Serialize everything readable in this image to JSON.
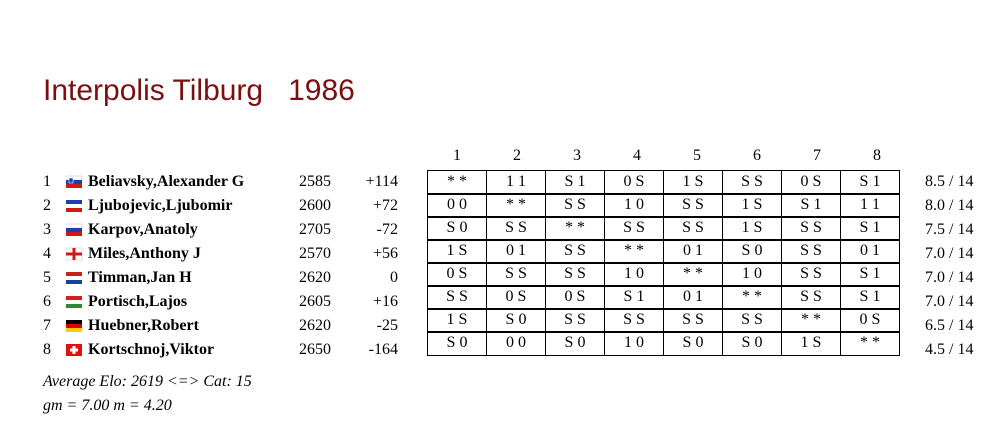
{
  "title": "Interpolis Tilburg",
  "year": "1986",
  "table": {
    "header": [
      "1",
      "2",
      "3",
      "4",
      "5",
      "6",
      "7",
      "8"
    ],
    "rows": [
      {
        "rank": "1",
        "name": "Beliavsky,Alexander G",
        "elo": "2585",
        "diff": "+114",
        "results": [
          "* *",
          "1 1",
          "S 1",
          "0 S",
          "1 S",
          "S S",
          "0 S",
          "S 1"
        ],
        "score": "8.5 / 14"
      },
      {
        "rank": "2",
        "name": "Ljubojevic,Ljubomir",
        "elo": "2600",
        "diff": "+72",
        "results": [
          "0 0",
          "* *",
          "S S",
          "1 0",
          "S S",
          "1 S",
          "S 1",
          "1 1"
        ],
        "score": "8.0 / 14"
      },
      {
        "rank": "3",
        "name": "Karpov,Anatoly",
        "elo": "2705",
        "diff": "-72",
        "results": [
          "S 0",
          "S S",
          "* *",
          "S S",
          "S S",
          "1 S",
          "S S",
          "S 1"
        ],
        "score": "7.5 / 14"
      },
      {
        "rank": "4",
        "name": "Miles,Anthony J",
        "elo": "2570",
        "diff": "+56",
        "results": [
          "1 S",
          "0 1",
          "S S",
          "* *",
          "0 1",
          "S 0",
          "S S",
          "0 1"
        ],
        "score": "7.0 / 14"
      },
      {
        "rank": "5",
        "name": "Timman,Jan H",
        "elo": "2620",
        "diff": "0",
        "results": [
          "0 S",
          "S S",
          "S S",
          "1 0",
          "* *",
          "1 0",
          "S S",
          "S 1"
        ],
        "score": "7.0 / 14"
      },
      {
        "rank": "6",
        "name": "Portisch,Lajos",
        "elo": "2605",
        "diff": "+16",
        "results": [
          "S S",
          "0 S",
          "0 S",
          "S 1",
          "0 1",
          "* *",
          "S S",
          "S 1"
        ],
        "score": "7.0 / 14"
      },
      {
        "rank": "7",
        "name": "Huebner,Robert",
        "elo": "2620",
        "diff": "-25",
        "results": [
          "1 S",
          "S 0",
          "S S",
          "S S",
          "S S",
          "S S",
          "* *",
          "0 S"
        ],
        "score": "6.5 / 14"
      },
      {
        "rank": "8",
        "name": "Kortschnoj,Viktor",
        "elo": "2650",
        "diff": "-164",
        "results": [
          "S 0",
          "0 0",
          "S 0",
          "1 0",
          "S 0",
          "S 0",
          "1 S",
          "* *"
        ],
        "score": "4.5 / 14"
      }
    ]
  },
  "footer": {
    "average": "Average Elo: 2619 <=> Cat: 15",
    "norms": "gm = 7.00 m = 4.20"
  }
}
